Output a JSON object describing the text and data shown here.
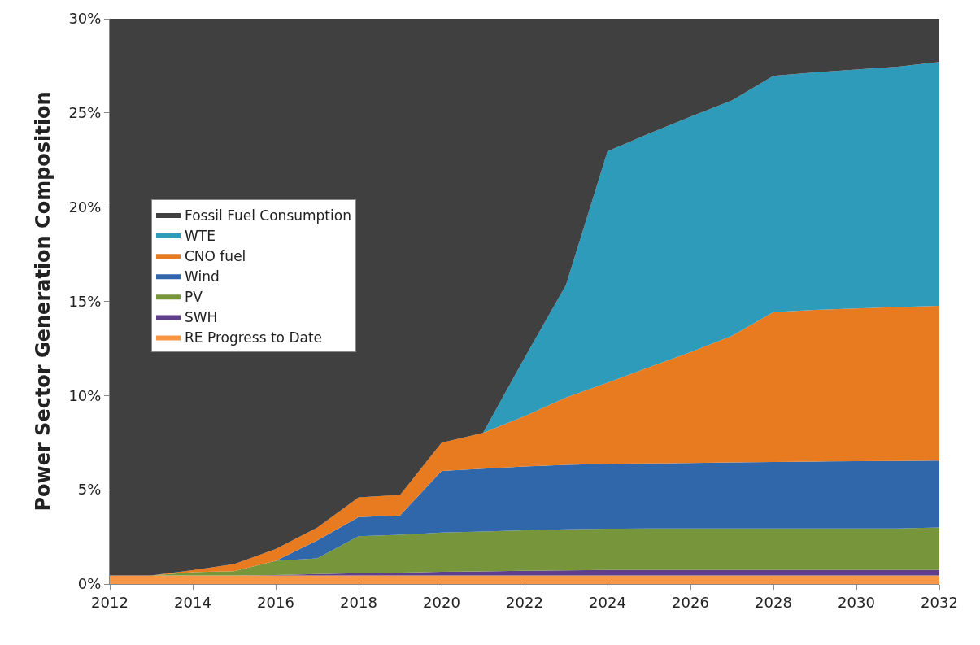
{
  "chart_data": {
    "type": "area",
    "stacked": true,
    "ylabel": "Power Sector Generation Composition",
    "x": [
      2012,
      2013,
      2014,
      2015,
      2016,
      2017,
      2018,
      2019,
      2020,
      2021,
      2022,
      2023,
      2024,
      2025,
      2026,
      2027,
      2028,
      2029,
      2030,
      2031,
      2032
    ],
    "xlim": [
      2012,
      2032
    ],
    "xticks": [
      2012,
      2014,
      2016,
      2018,
      2020,
      2022,
      2024,
      2026,
      2028,
      2030,
      2032
    ],
    "ylim": [
      0,
      30
    ],
    "yticks": [
      {
        "value": 0,
        "label": "0%"
      },
      {
        "value": 5,
        "label": "5%"
      },
      {
        "value": 10,
        "label": "10%"
      },
      {
        "value": 15,
        "label": "15%"
      },
      {
        "value": 20,
        "label": "20%"
      },
      {
        "value": 25,
        "label": "25%"
      },
      {
        "value": 30,
        "label": "30%"
      }
    ],
    "legend": "left",
    "series": [
      {
        "name": "RE Progress to Date",
        "color": "#f79646",
        "values": [
          0.45,
          0.45,
          0.45,
          0.45,
          0.45,
          0.45,
          0.45,
          0.45,
          0.45,
          0.45,
          0.45,
          0.45,
          0.45,
          0.45,
          0.45,
          0.45,
          0.45,
          0.45,
          0.45,
          0.45,
          0.45
        ]
      },
      {
        "name": "SWH",
        "color": "#5f3f8a",
        "values": [
          0,
          0,
          0,
          0,
          0.03,
          0.08,
          0.12,
          0.15,
          0.2,
          0.22,
          0.25,
          0.27,
          0.3,
          0.3,
          0.3,
          0.3,
          0.3,
          0.3,
          0.3,
          0.3,
          0.3
        ]
      },
      {
        "name": "PV",
        "color": "#77963c",
        "values": [
          0,
          0,
          0.18,
          0.23,
          0.75,
          0.83,
          1.97,
          2.01,
          2.08,
          2.11,
          2.15,
          2.18,
          2.18,
          2.2,
          2.2,
          2.2,
          2.2,
          2.2,
          2.2,
          2.2,
          2.25
        ]
      },
      {
        "name": "Wind",
        "color": "#2f67aa",
        "values": [
          0,
          0,
          0,
          0,
          0,
          0.95,
          1.01,
          1.03,
          3.27,
          3.34,
          3.39,
          3.42,
          3.45,
          3.45,
          3.47,
          3.5,
          3.52,
          3.55,
          3.57,
          3.58,
          3.55
        ]
      },
      {
        "name": "CNO fuel",
        "color": "#e87a20",
        "values": [
          0,
          0,
          0.1,
          0.38,
          0.63,
          0.68,
          1.05,
          1.09,
          1.5,
          1.9,
          2.66,
          3.58,
          4.3,
          5.1,
          5.88,
          6.72,
          7.96,
          8.05,
          8.1,
          8.17,
          8.21
        ]
      },
      {
        "name": "WTE",
        "color": "#2e9bbb",
        "values": [
          0,
          0,
          0,
          0,
          0,
          0,
          0,
          0,
          0,
          0,
          3.1,
          5.97,
          12.28,
          12.4,
          12.5,
          12.49,
          12.54,
          12.6,
          12.68,
          12.75,
          12.94
        ]
      },
      {
        "name": "Fossil Fuel Consumption",
        "color": "#404040",
        "values": [
          29.55,
          29.55,
          29.27,
          28.94,
          28.14,
          27.01,
          25.4,
          25.27,
          22.5,
          21.98,
          18.0,
          14.13,
          7.04,
          6.1,
          5.2,
          4.34,
          3.03,
          2.85,
          2.7,
          2.55,
          2.3
        ]
      }
    ]
  }
}
